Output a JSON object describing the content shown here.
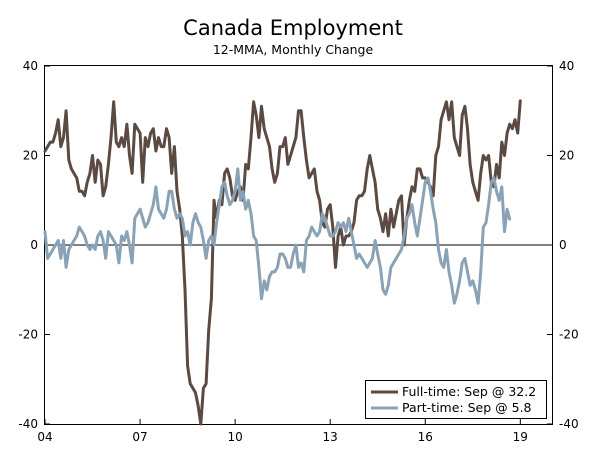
{
  "chart_data": {
    "type": "line",
    "title": "Canada Employment",
    "subtitle": "12-MMA, Monthly Change",
    "xlabel": "",
    "ylabel": "",
    "x_start": 2004.0,
    "x_step": 0.0833333,
    "xlim": [
      2004.0,
      2020.0
    ],
    "ylim": [
      -40,
      40
    ],
    "x_ticks": [
      {
        "value": 2004.0,
        "label": "04"
      },
      {
        "value": 2007.0,
        "label": "07"
      },
      {
        "value": 2010.0,
        "label": "10"
      },
      {
        "value": 2013.0,
        "label": "13"
      },
      {
        "value": 2016.0,
        "label": "16"
      },
      {
        "value": 2019.0,
        "label": "19"
      }
    ],
    "y_ticks": [
      {
        "value": 40,
        "label": "40"
      },
      {
        "value": 20,
        "label": "20"
      },
      {
        "value": 0,
        "label": "0"
      },
      {
        "value": -20,
        "label": "-20"
      },
      {
        "value": -40,
        "label": "-40"
      }
    ],
    "zero_line": true,
    "legend_position": "bottom-right",
    "series": [
      {
        "name": "Full-time",
        "legend": "Full-time: Sep @ 32.2",
        "color": "#5b4a42",
        "values": [
          21,
          22,
          23,
          23,
          25,
          28,
          22,
          24,
          30,
          19,
          17,
          16,
          15,
          12,
          12,
          11,
          14,
          16,
          20,
          14,
          19,
          18,
          11,
          13,
          18,
          24,
          32,
          23,
          22,
          24,
          22,
          27,
          20,
          16,
          27,
          26,
          25,
          14,
          24,
          22,
          25,
          26,
          21,
          24,
          22,
          22,
          26,
          24,
          16,
          22,
          12,
          8,
          2,
          -10,
          -27,
          -31,
          -32,
          -33,
          -36,
          -40,
          -32,
          -31,
          -19,
          -12,
          10,
          6,
          10,
          9,
          16,
          17,
          15,
          11,
          10,
          12,
          13,
          10,
          18,
          17,
          24,
          32,
          29,
          24,
          31,
          26,
          24,
          22,
          17,
          14,
          16,
          22,
          22,
          24,
          18,
          20,
          22,
          24,
          30,
          30,
          24,
          19,
          15,
          16,
          17,
          12,
          10,
          5,
          4,
          8,
          9,
          4,
          -5,
          2,
          4,
          0,
          2,
          2,
          3,
          5,
          10,
          11,
          11,
          12,
          17,
          20,
          17,
          14,
          8,
          6,
          3,
          7,
          2,
          8,
          4,
          7,
          10,
          11,
          0,
          6,
          10,
          13,
          12,
          17,
          17,
          15,
          15,
          14,
          13,
          11,
          20,
          22,
          28,
          30,
          32,
          28,
          32,
          24,
          22,
          20,
          29,
          31,
          26,
          18,
          14,
          12,
          10,
          16,
          20,
          19,
          20,
          14,
          13,
          18,
          15,
          23,
          20,
          25,
          27,
          26,
          28,
          25,
          32.2
        ]
      },
      {
        "name": "Part-time",
        "legend": "Part-time: Sep @ 5.8",
        "color": "#8aa2b5",
        "values": [
          3,
          -3,
          -2,
          -1,
          0,
          1,
          -3,
          1,
          -5,
          -1,
          0,
          1,
          2,
          4,
          3,
          2,
          0,
          -1,
          0,
          -1,
          2,
          3,
          1,
          -3,
          3,
          2,
          1,
          0,
          -4,
          2,
          1,
          3,
          0,
          -4,
          6,
          7,
          8,
          6,
          4,
          5,
          7,
          9,
          13,
          8,
          7,
          6,
          8,
          12,
          12,
          8,
          6,
          7,
          6,
          2,
          3,
          0,
          5,
          7,
          5,
          4,
          1,
          -3,
          1,
          2,
          0,
          5,
          9,
          13,
          14,
          11,
          9,
          10,
          12,
          17,
          10,
          12,
          8,
          10,
          7,
          2,
          1,
          -5,
          -12,
          -8,
          -10,
          -7,
          -6,
          -6,
          -5,
          -2,
          -2,
          -3,
          -5,
          -5,
          -2,
          0,
          -5,
          -4,
          -6,
          1,
          2,
          4,
          3,
          2,
          3,
          7,
          6,
          4,
          2,
          2,
          3,
          5,
          4,
          5,
          3,
          6,
          3,
          0,
          -3,
          -2,
          -3,
          -4,
          -5,
          -4,
          -3,
          1,
          -2,
          -5,
          -10,
          -11,
          -9,
          -5,
          -4,
          -3,
          -2,
          -1,
          2,
          6,
          7,
          9,
          5,
          2,
          6,
          10,
          14,
          15,
          12,
          8,
          5,
          -1,
          -4,
          -5,
          -1,
          -6,
          -9,
          -13,
          -11,
          -8,
          -4,
          -3,
          -6,
          -9,
          -8,
          -10,
          -13,
          -6,
          4,
          5,
          9,
          14,
          15,
          12,
          10,
          13,
          3,
          8,
          5.8
        ]
      }
    ]
  }
}
